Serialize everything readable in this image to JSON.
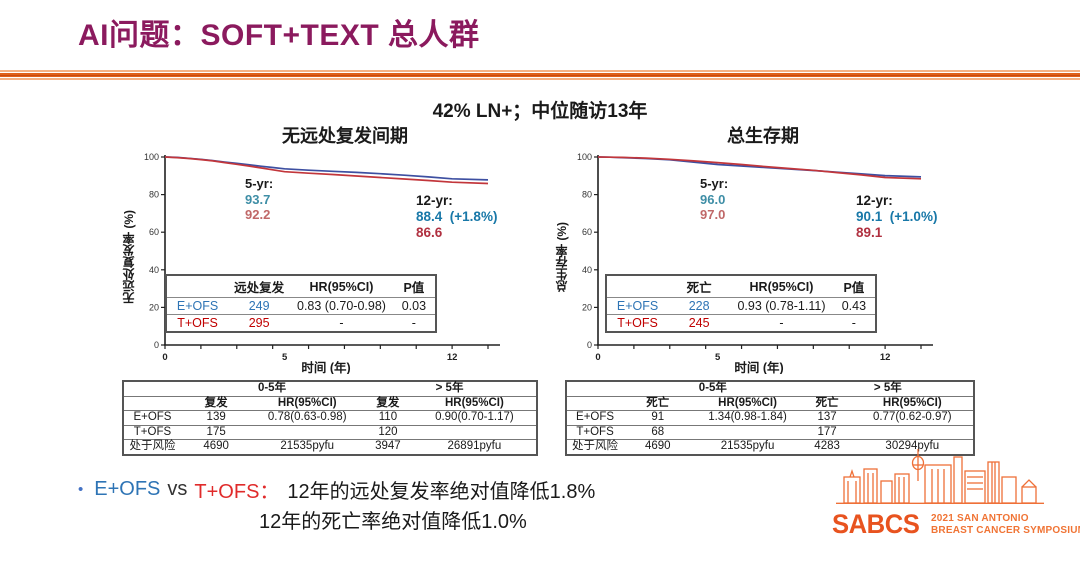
{
  "header": {
    "title": "AI问题：SOFT+TEXT 总人群"
  },
  "subtitle": "42% LN+；中位随访13年",
  "colors": {
    "title": "#8B1A5E",
    "divider_orange": "#E06018",
    "eofs_blue": "#2E74B5",
    "tofs_red": "#C00000",
    "curve_blue": "#3D4FA1",
    "curve_red": "#C2363B",
    "logo_orange": "#E8531F"
  },
  "charts": {
    "left": {
      "title": "无远处复发间期",
      "ylabel": "无远处复发率 (%)",
      "xlabel": "时间 (年)",
      "ann5": {
        "label": "5-yr:",
        "blue": "93.7",
        "red": "92.2"
      },
      "ann12": {
        "label": "12-yr:",
        "blue": "88.4",
        "delta": "(+1.8%)",
        "red": "86.6"
      },
      "inner": {
        "col_event": "远处复发",
        "col_hr": "HR(95%CI)",
        "col_p": "P值",
        "rows": [
          {
            "label": "E+OFS",
            "n": "249",
            "hr": "0.83 (0.70-0.98)",
            "p": "0.03"
          },
          {
            "label": "T+OFS",
            "n": "295",
            "hr": "-",
            "p": "-"
          }
        ]
      }
    },
    "right": {
      "title": "总生存期",
      "ylabel": "总生存率 (%)",
      "xlabel": "时间 (年)",
      "ann5": {
        "label": "5-yr:",
        "blue": "96.0",
        "red": "97.0"
      },
      "ann12": {
        "label": "12-yr:",
        "blue": "90.1",
        "delta": "(+1.0%)",
        "red": "89.1"
      },
      "inner": {
        "col_event": "死亡",
        "col_hr": "HR(95%CI)",
        "col_p": "P值",
        "rows": [
          {
            "label": "E+OFS",
            "n": "228",
            "hr": "0.93 (0.78-1.11)",
            "p": "0.43"
          },
          {
            "label": "T+OFS",
            "n": "245",
            "hr": "-",
            "p": "-"
          }
        ]
      }
    }
  },
  "chart_data": [
    {
      "type": "line",
      "title": "无远处复发间期",
      "xlabel": "时间 (年)",
      "ylabel": "无远处复发率 (%)",
      "xlim": [
        0,
        13.5
      ],
      "ylim": [
        0,
        100
      ],
      "yticks": [
        0,
        20,
        40,
        60,
        80,
        100
      ],
      "xticks_labeled": [
        0,
        5,
        12
      ],
      "minor_tick_step": 1.5,
      "grid": false,
      "legend": "none",
      "annotations": {
        "yr5": {
          "E+OFS": 93.7,
          "T+OFS": 92.2
        },
        "yr12": {
          "E+OFS": 88.4,
          "T+OFS": 86.6,
          "abs_improvement": "+1.8%"
        },
        "hr": "0.83 (0.70-0.98)",
        "p_value": "0.03"
      },
      "series": [
        {
          "name": "E+OFS",
          "color": "#3D4FA1",
          "points": [
            [
              0,
              100
            ],
            [
              0.5,
              99.8
            ],
            [
              1,
              99.3
            ],
            [
              1.5,
              98.8
            ],
            [
              2,
              98.1
            ],
            [
              2.5,
              97.3
            ],
            [
              3,
              96.6
            ],
            [
              3.5,
              95.9
            ],
            [
              4,
              95.1
            ],
            [
              4.5,
              94.4
            ],
            [
              5,
              93.7
            ],
            [
              6,
              93.0
            ],
            [
              7,
              92.4
            ],
            [
              8,
              91.8
            ],
            [
              9,
              91.1
            ],
            [
              10,
              90.3
            ],
            [
              11,
              89.4
            ],
            [
              12,
              88.4
            ],
            [
              13.5,
              87.8
            ]
          ]
        },
        {
          "name": "T+OFS",
          "color": "#C2363B",
          "points": [
            [
              0,
              100
            ],
            [
              0.5,
              99.7
            ],
            [
              1,
              99.2
            ],
            [
              1.5,
              98.6
            ],
            [
              2,
              97.9
            ],
            [
              2.5,
              97.0
            ],
            [
              3,
              96.1
            ],
            [
              3.5,
              95.2
            ],
            [
              4,
              94.2
            ],
            [
              4.5,
              93.2
            ],
            [
              5,
              92.2
            ],
            [
              6,
              91.4
            ],
            [
              7,
              90.7
            ],
            [
              8,
              89.9
            ],
            [
              9,
              89.1
            ],
            [
              10,
              88.3
            ],
            [
              11,
              87.5
            ],
            [
              12,
              86.6
            ],
            [
              13.5,
              85.9
            ]
          ]
        }
      ]
    },
    {
      "type": "line",
      "title": "总生存期",
      "xlabel": "时间 (年)",
      "ylabel": "总生存率 (%)",
      "xlim": [
        0,
        13.5
      ],
      "ylim": [
        0,
        100
      ],
      "yticks": [
        0,
        20,
        40,
        60,
        80,
        100
      ],
      "xticks_labeled": [
        0,
        5,
        12
      ],
      "minor_tick_step": 1.5,
      "grid": false,
      "legend": "none",
      "annotations": {
        "yr5": {
          "E+OFS": 96.0,
          "T+OFS": 97.0
        },
        "yr12": {
          "E+OFS": 90.1,
          "T+OFS": 89.1,
          "abs_improvement": "+1.0%"
        },
        "hr": "0.93 (0.78-1.11)",
        "p_value": "0.43"
      },
      "series": [
        {
          "name": "E+OFS",
          "color": "#3D4FA1",
          "points": [
            [
              0,
              100
            ],
            [
              0.5,
              99.9
            ],
            [
              1,
              99.7
            ],
            [
              2,
              99.2
            ],
            [
              3,
              98.5
            ],
            [
              4,
              97.3
            ],
            [
              5,
              96.0
            ],
            [
              6,
              95.2
            ],
            [
              7,
              94.4
            ],
            [
              8,
              93.6
            ],
            [
              9,
              92.8
            ],
            [
              10,
              91.9
            ],
            [
              11,
              91.0
            ],
            [
              12,
              90.1
            ],
            [
              13.5,
              89.4
            ]
          ]
        },
        {
          "name": "T+OFS",
          "color": "#C2363B",
          "points": [
            [
              0,
              100
            ],
            [
              0.5,
              99.9
            ],
            [
              1,
              99.8
            ],
            [
              2,
              99.4
            ],
            [
              3,
              98.8
            ],
            [
              4,
              97.9
            ],
            [
              5,
              97.0
            ],
            [
              6,
              96.0
            ],
            [
              7,
              94.9
            ],
            [
              8,
              93.9
            ],
            [
              9,
              92.9
            ],
            [
              10,
              91.7
            ],
            [
              11,
              90.5
            ],
            [
              12,
              89.1
            ],
            [
              13.5,
              88.4
            ]
          ]
        }
      ]
    }
  ],
  "tables": {
    "left": {
      "period1": "0-5年",
      "period2": "> 5年",
      "cols": [
        "复发",
        "HR(95%CI)",
        "复发",
        "HR(95%CI)"
      ],
      "rows": [
        [
          "E+OFS",
          "139",
          "0.78(0.63-0.98)",
          "110",
          "0.90(0.70-1.17)"
        ],
        [
          "T+OFS",
          "175",
          "",
          "120",
          ""
        ],
        [
          "处于风险",
          "4690",
          "21535pyfu",
          "3947",
          "26891pyfu"
        ]
      ]
    },
    "right": {
      "period1": "0-5年",
      "period2": "> 5年",
      "cols": [
        "死亡",
        "HR(95%CI)",
        "死亡",
        "HR(95%CI)"
      ],
      "rows": [
        [
          "E+OFS",
          "91",
          "1.34(0.98-1.84)",
          "137",
          "0.77(0.62-0.97)"
        ],
        [
          "T+OFS",
          "68",
          "",
          "177",
          ""
        ],
        [
          "处于风险",
          "4690",
          "21535pyfu",
          "4283",
          "30294pyfu"
        ]
      ]
    }
  },
  "bullet": {
    "marker": "•",
    "blue": "E+OFS",
    "vs": "vs",
    "red": "T+OFS：",
    "line1": "12年的远处复发率绝对值降低1.8%",
    "line2": "12年的死亡率绝对值降低1.0%"
  },
  "logo": {
    "acronym": "SABCS",
    "line1": "2021 SAN ANTONIO",
    "line2": "BREAST CANCER SYMPOSIUM"
  }
}
